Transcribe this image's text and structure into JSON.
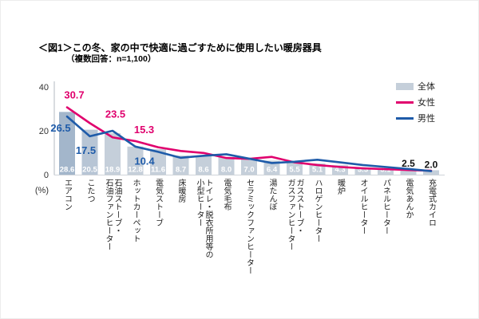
{
  "figure": {
    "title": "＜図1＞この冬、家の中で快適に過ごすために使用したい暖房器具",
    "subtitle": "（複数回答：n=1,100）"
  },
  "chart_data": {
    "type": "bar",
    "subtype": "bars_with_two_line_series_overlay",
    "title": "＜図1＞この冬、家の中で快適に過ごすために使用したい暖房器具",
    "subtitle": "（複数回答：n=1,100）",
    "ylabel": "(%)",
    "ylim": [
      0,
      40
    ],
    "yticks": [
      0,
      20,
      40
    ],
    "grid": false,
    "legend_position": "top-right",
    "note": "Line values that have no point_labels entry are estimated from pixel positions; bar values are printed on the chart.",
    "categories": [
      "エアコン",
      "こたつ",
      "石油ストーブ・\n石油ファンヒーター",
      "ホットカーペット",
      "電気ストーブ",
      "床暖房",
      "トイレ・脱衣所用等の\n小型ヒーター",
      "電気毛布",
      "セラミックファンヒーター",
      "湯たんぽ",
      "ガスストーブ・\nガスファンヒーター",
      "ハロゲンヒーター",
      "暖炉",
      "オイルヒーター",
      "パネルヒーター",
      "電気あんか",
      "充電式カイロ"
    ],
    "series": [
      {
        "name": "全体",
        "kind": "bar",
        "color_default": "#c5cfda",
        "color_overrides": {
          "0": "#a3b6cb",
          "1": "#b7c5d5"
        },
        "values": [
          28.6,
          20.5,
          18.9,
          12.8,
          11.6,
          8.7,
          8.6,
          8.0,
          7.0,
          6.4,
          5.5,
          5.1,
          4.3,
          3.3,
          3.1,
          2.5,
          2.0
        ],
        "value_labels": [
          "28.6",
          "20.5",
          "18.9",
          "12.8",
          "11.6",
          "8.7",
          "8.6",
          "8.0",
          "7.0",
          "6.4",
          "5.5",
          "5.1",
          "4.3",
          "3.3",
          "3.1",
          "2.5",
          "2.0"
        ],
        "inside_label_color": "#ffffff",
        "above_label_color": "#111111"
      },
      {
        "name": "女性",
        "kind": "line",
        "color": "#e0006d",
        "values": [
          30.7,
          23.5,
          17.0,
          15.3,
          12.5,
          10.8,
          9.9,
          7.6,
          7.2,
          8.1,
          5.6,
          4.4,
          3.5,
          2.9,
          2.5,
          2.1,
          1.8
        ],
        "point_labels": {
          "0": "30.7",
          "1": "23.5",
          "3": "15.3"
        }
      },
      {
        "name": "男性",
        "kind": "line",
        "color": "#1e5ba9",
        "values": [
          26.5,
          17.5,
          20.0,
          12.8,
          10.4,
          7.7,
          8.6,
          9.3,
          7.3,
          5.3,
          5.9,
          6.8,
          5.6,
          4.4,
          3.5,
          2.6,
          1.6
        ],
        "point_labels": {
          "0": "26.5",
          "1": "17.5",
          "4": "10.4"
        }
      }
    ]
  }
}
